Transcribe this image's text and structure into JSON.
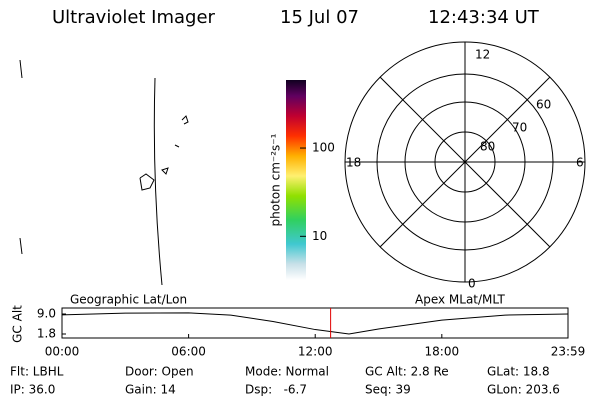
{
  "header": {
    "title": "Ultraviolet Imager",
    "date": "15 Jul 07",
    "time": "12:43:34 UT"
  },
  "colorbar": {
    "label": "photon cm⁻²s⁻¹",
    "log": true,
    "lim": [
      3.2,
      590
    ],
    "ticks": [
      10,
      100
    ]
  },
  "polar": {
    "hour_labels": [
      "12",
      "18",
      "6",
      "0"
    ],
    "lat_labels": [
      "60",
      "70",
      "80"
    ]
  },
  "chart_data": {
    "type": "line",
    "left_label": "Geographic Lat/Lon",
    "right_label": "Apex MLat/MLT",
    "ylabel": "GC Alt",
    "x": [
      0,
      3,
      6,
      8,
      10,
      12,
      13.6,
      15,
      18,
      21,
      23.98
    ],
    "series": [
      {
        "name": "GC Alt",
        "color": "#000000",
        "values": [
          8.7,
          9.3,
          9.4,
          8.6,
          6.3,
          3.4,
          1.8,
          3.6,
          6.8,
          8.6,
          9.0
        ]
      }
    ],
    "cursor_x": 12.73,
    "cursor_color": "#e00000",
    "xlim": [
      0,
      23.98
    ],
    "xticks": [
      {
        "value": 0,
        "label": "00:00"
      },
      {
        "value": 6,
        "label": "06:00"
      },
      {
        "value": 12,
        "label": "12:00"
      },
      {
        "value": 18,
        "label": "18:00"
      },
      {
        "value": 23.98,
        "label": "23:59"
      }
    ],
    "ylim": [
      1.8,
      9.0
    ],
    "yticks": [
      {
        "value": 9.0,
        "label": "9.0"
      },
      {
        "value": 1.8,
        "label": "1.8"
      }
    ]
  },
  "footer": [
    [
      "Flt: LBHL",
      "Door: Open",
      "Mode: Normal",
      "GC Alt: 2.8 Re",
      "GLat: 18.8"
    ],
    [
      "IP: 36.0",
      "Gain: 14",
      "Dsp:   -6.7",
      "Seq: 39",
      "GLon: 203.6"
    ]
  ]
}
